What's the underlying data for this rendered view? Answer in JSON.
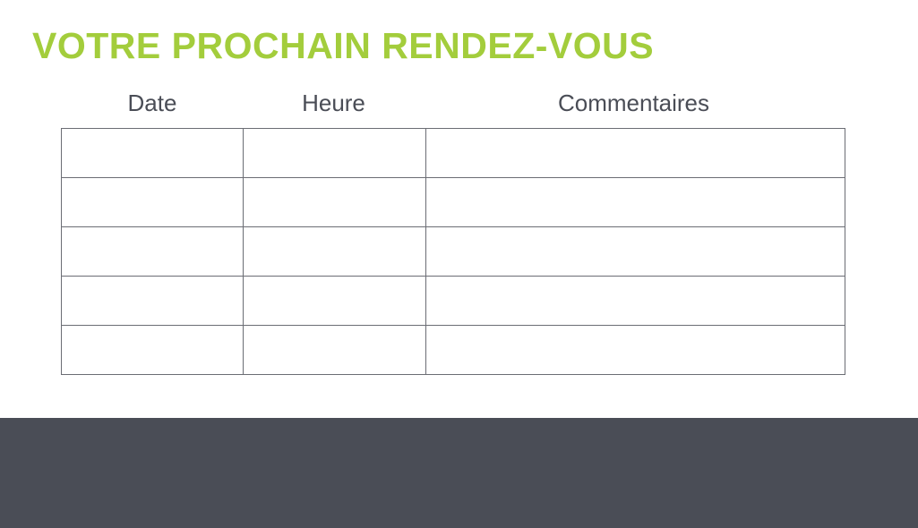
{
  "title": "VOTRE PROCHAIN RENDEZ-VOUS",
  "columns": [
    "Date",
    "Heure",
    "Commentaires"
  ],
  "rows": [
    [
      "",
      "",
      ""
    ],
    [
      "",
      "",
      ""
    ],
    [
      "",
      "",
      ""
    ],
    [
      "",
      "",
      ""
    ],
    [
      "",
      "",
      ""
    ]
  ],
  "colors": {
    "accent": "#a3cd3c",
    "text": "#4a4d56",
    "footer": "#4a4d56"
  }
}
